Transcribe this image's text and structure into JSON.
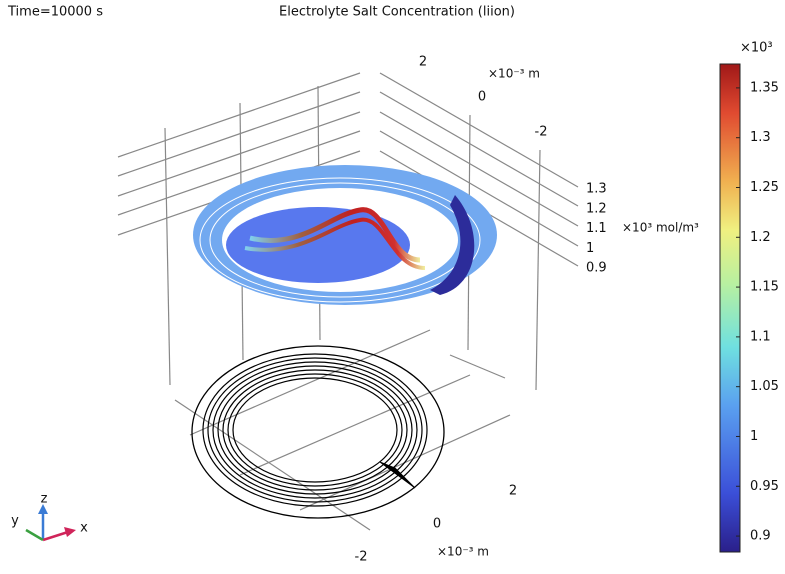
{
  "header": {
    "time": "Time=10000 s",
    "title": "Electrolyte Salt Concentration (liion)"
  },
  "plot": {
    "z_axis": {
      "unit": "×10³ mol/m³",
      "ticks": [
        1.3,
        1.2,
        1.1,
        1,
        0.9
      ]
    },
    "top_axis": {
      "unit": "×10⁻³ m",
      "ticks": [
        2,
        0,
        -2
      ]
    },
    "bottom_axis": {
      "unit": "×10⁻³ m",
      "ticks": [
        2,
        0,
        -2
      ]
    },
    "triad": {
      "x": "x",
      "y": "y",
      "z": "z"
    }
  },
  "colorbar": {
    "multiplier": "×10³",
    "lim": [
      0.884,
      1.374
    ],
    "ticks": [
      1.35,
      1.3,
      1.25,
      1.2,
      1.15,
      1.1,
      1.05,
      1,
      0.95,
      0.9
    ]
  }
}
